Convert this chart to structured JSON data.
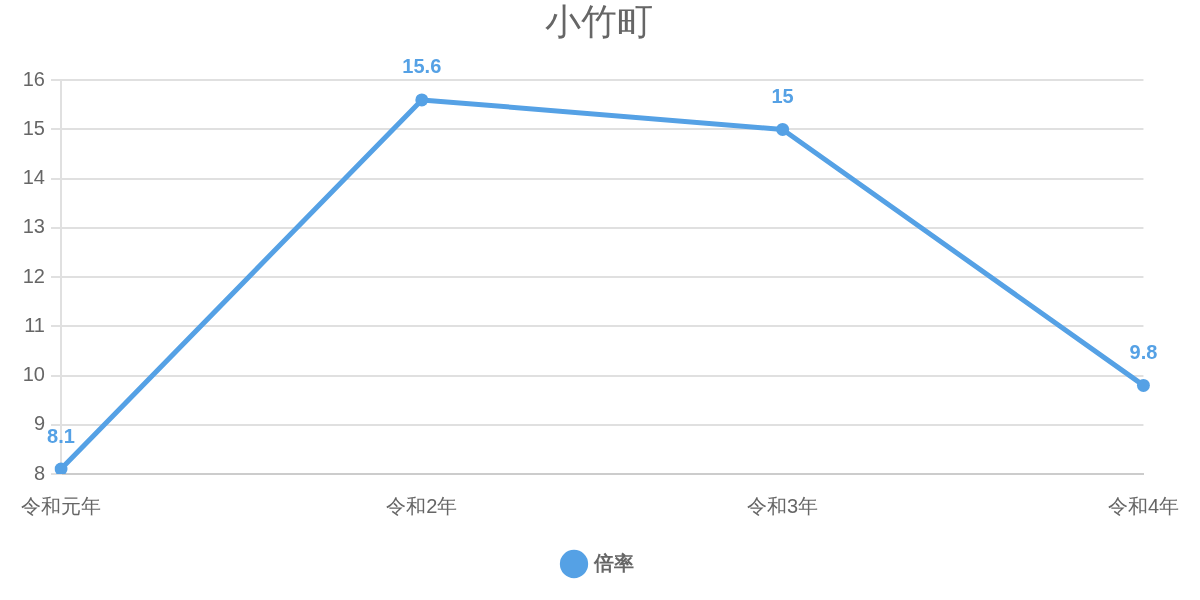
{
  "chart_data": {
    "type": "line",
    "title": "小竹町",
    "categories": [
      "令和元年",
      "令和2年",
      "令和3年",
      "令和4年"
    ],
    "series": [
      {
        "name": "倍率",
        "color": "#55a1e5",
        "values": [
          8.1,
          15.6,
          15,
          9.8
        ]
      }
    ],
    "ylim": [
      8,
      16
    ],
    "yticks": [
      8,
      9,
      10,
      11,
      12,
      13,
      14,
      15,
      16
    ],
    "grid": "y",
    "legend": "bottom",
    "marker": "circle",
    "line_style": "solid",
    "data_labels": true
  }
}
